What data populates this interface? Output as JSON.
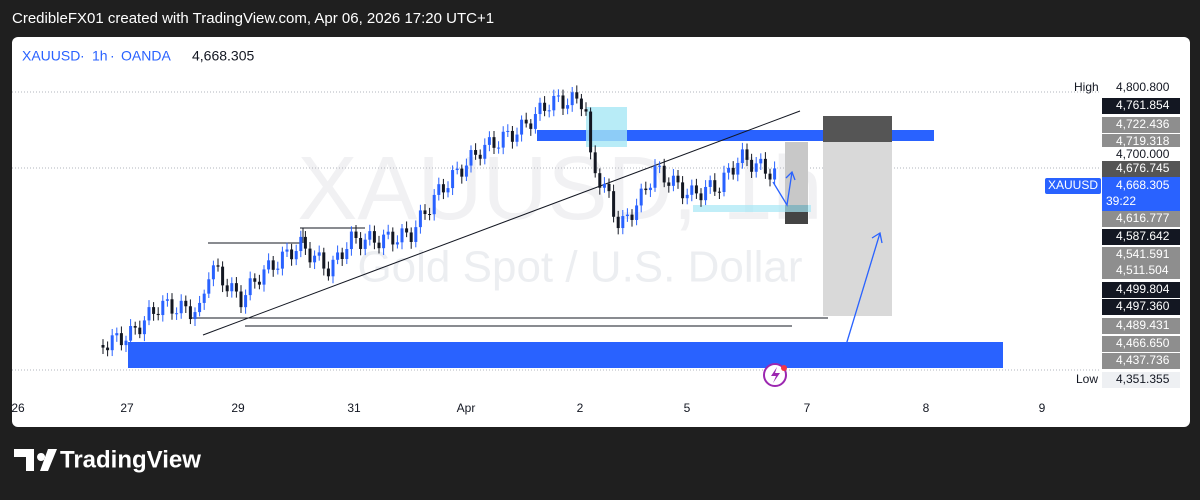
{
  "header": {
    "text": "CredibleFX01 created with TradingView.com, Apr 06, 2026 17:20 UTC+1"
  },
  "symbol": {
    "ticker": "XAUUSD",
    "interval": "1h",
    "exchange": "OANDA",
    "price": "4,668.305"
  },
  "watermark": {
    "title": "XAUUSD, 1h",
    "subtitle": "Gold Spot / U.S. Dollar"
  },
  "price_scale": {
    "high_label": "High",
    "high": "4,800.800",
    "levels": [
      "4,761.854",
      "4,722.436",
      "4,719.318",
      "4,700.000",
      "4,676.745",
      "4,616.777",
      "4,587.642",
      "4,541.591",
      "4,511.504",
      "4,499.804",
      "4,497.360",
      "4,489.431",
      "4,466.650",
      "4,437.736"
    ],
    "current": {
      "ticker": "XAUUSD",
      "price": "4,668.305",
      "countdown": "39:22"
    },
    "low_label": "Low",
    "low": "4,351.355"
  },
  "time_scale": [
    "26",
    "27",
    "29",
    "31",
    "Apr",
    "2",
    "5",
    "7",
    "8",
    "9"
  ],
  "footer": {
    "brand": "TradingView"
  }
}
